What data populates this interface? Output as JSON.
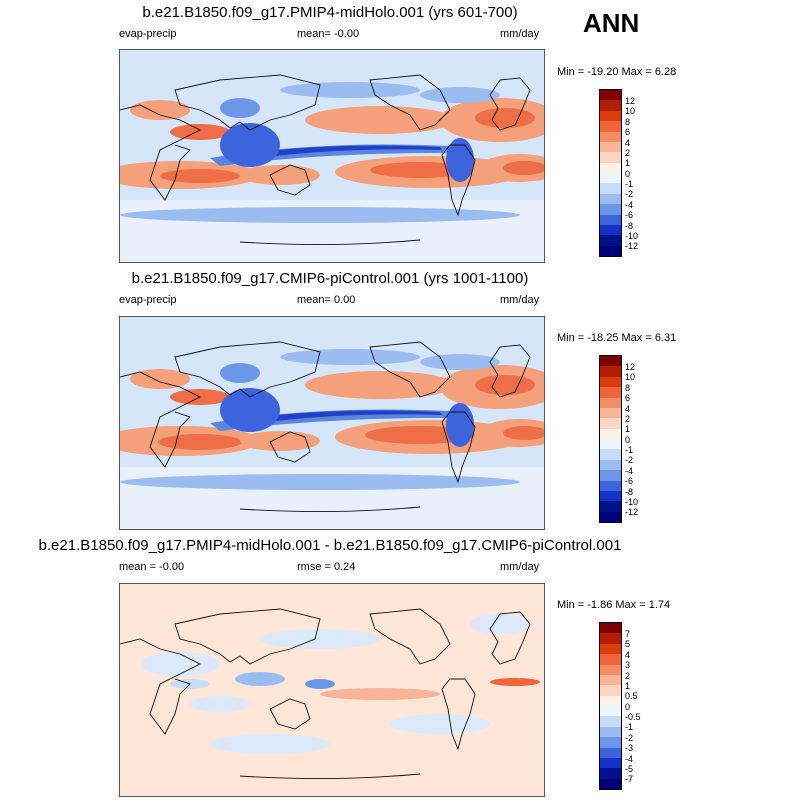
{
  "season": "ANN",
  "panels": [
    {
      "title": "b.e21.B1850.f09_g17.PMIP4-midHolo.001 (yrs 601-700)",
      "left_label": "evap-precip",
      "mid_label": "mean=  -0.00",
      "units": "mm/day",
      "minmax": "Min = -19.20 Max =   6.28",
      "levels": [
        "12",
        "10",
        "8",
        "6",
        "4",
        "2",
        "1",
        "0",
        "-1",
        "-2",
        "-4",
        "-6",
        "-8",
        "-10",
        "-12"
      ]
    },
    {
      "title": "b.e21.B1850.f09_g17.CMIP6-piControl.001 (yrs 1001-1100)",
      "left_label": "evap-precip",
      "mid_label": "mean=   0.00",
      "units": "mm/day",
      "minmax": "Min = -18.25 Max =   6.31",
      "levels": [
        "12",
        "10",
        "8",
        "6",
        "4",
        "2",
        "1",
        "0",
        "-1",
        "-2",
        "-4",
        "-6",
        "-8",
        "-10",
        "-12"
      ]
    },
    {
      "title": "b.e21.B1850.f09_g17.PMIP4-midHolo.001 - b.e21.B1850.f09_g17.CMIP6-piControl.001",
      "left_label": "mean =  -0.00",
      "mid_label": "rmse =   0.24",
      "units": "mm/day",
      "minmax": "Min =  -1.86 Max =   1.74",
      "levels": [
        "7",
        "5",
        "4",
        "3",
        "2",
        "1",
        "0.5",
        "0",
        "-0.5",
        "-1",
        "-2",
        "-3",
        "-4",
        "-5",
        "-7"
      ]
    }
  ],
  "colorbar_colors": [
    "#7f0000",
    "#b41e00",
    "#dc3c0a",
    "#f0643c",
    "#f48c64",
    "#f8b496",
    "#fcd6c2",
    "#fef0e6",
    "#ecf4fd",
    "#c6dcf8",
    "#9bbcf0",
    "#6e96e8",
    "#3c64dc",
    "#1432c8",
    "#00118c",
    "#00007a"
  ],
  "colors": {
    "map_background": "#d5e6f8",
    "land_outline": "#111111"
  }
}
